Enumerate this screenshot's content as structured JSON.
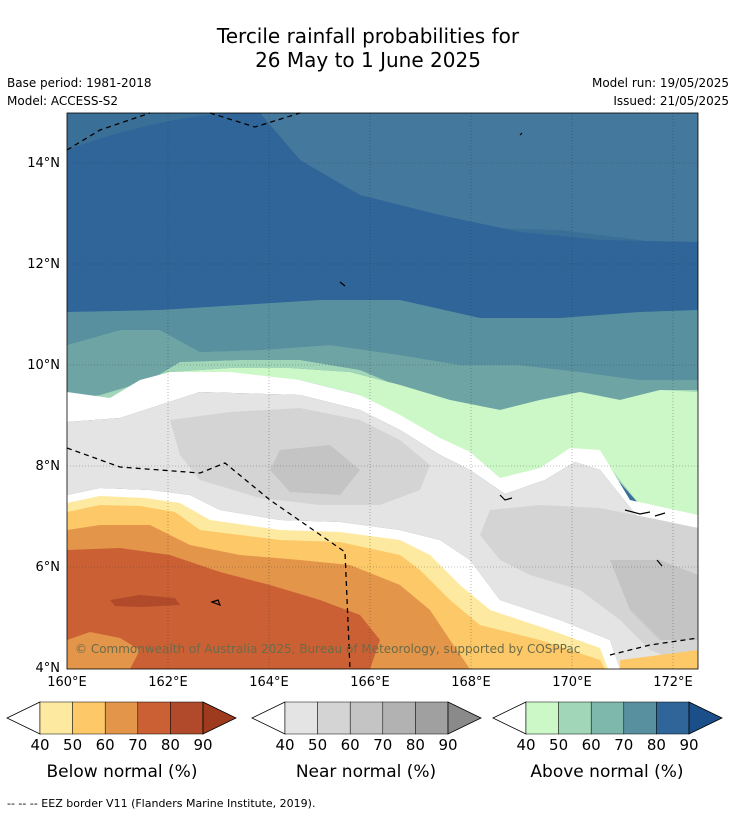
{
  "title_line1": "Tercile rainfall probabilities for",
  "title_line2": "26 May to 1 June 2025",
  "info_left": {
    "base_period": "Base period: 1981-2018",
    "model": "Model: ACCESS-S2"
  },
  "info_right": {
    "model_run": "Model run: 19/05/2025",
    "issued": "Issued: 21/05/2025"
  },
  "map": {
    "lat_labels": [
      "14°N",
      "12°N",
      "10°N",
      "8°N",
      "6°N",
      "4°N"
    ],
    "lon_labels": [
      "160°E",
      "162°E",
      "164°E",
      "166°E",
      "168°E",
      "170°E",
      "172°E"
    ],
    "lat_range": [
      4,
      15
    ],
    "lon_range": [
      160,
      172.5
    ],
    "grid": true,
    "copyright": "© Commonwealth of Australia 2025, Bureau of Meteorology, supported by COSPPac"
  },
  "colorbars": [
    {
      "name": "Below normal (%)",
      "ticks": [
        "40",
        "50",
        "60",
        "70",
        "80",
        "90"
      ],
      "colors": [
        "#fdeaa0",
        "#fdc968",
        "#e3964a",
        "#cb6034",
        "#b04a2a"
      ],
      "under_color": "#ffffff",
      "over_color": "#9e3a1e"
    },
    {
      "name": "Near normal (%)",
      "ticks": [
        "40",
        "50",
        "60",
        "70",
        "80",
        "90"
      ],
      "colors": [
        "#e4e4e4",
        "#d4d4d4",
        "#c4c4c4",
        "#b2b2b2",
        "#a0a0a0"
      ],
      "under_color": "#ffffff",
      "over_color": "#8a8a8a"
    },
    {
      "name": "Above normal (%)",
      "ticks": [
        "40",
        "50",
        "60",
        "70",
        "80",
        "90"
      ],
      "colors": [
        "#ccf8c8",
        "#a2d6b8",
        "#7eb8ac",
        "#5890a0",
        "#2f6598"
      ],
      "under_color": "#ffffff",
      "over_color": "#1a4f8a"
    }
  ],
  "footer": "--  --  -- EEZ border V11 (Flanders Marine Institute, 2019)."
}
